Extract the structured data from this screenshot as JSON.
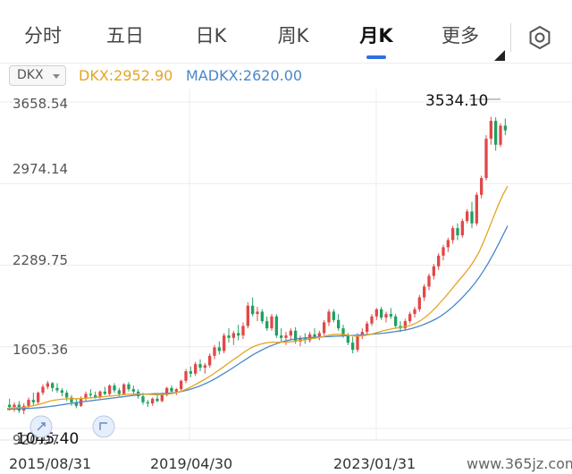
{
  "tabs": [
    {
      "label": "分时",
      "active": false
    },
    {
      "label": "五日",
      "active": false
    },
    {
      "label": "日K",
      "active": false
    },
    {
      "label": "周K",
      "active": false
    },
    {
      "label": "月K",
      "active": true
    },
    {
      "label": "更多",
      "active": false
    }
  ],
  "settings_icon": "gear-icon",
  "legend": {
    "indicator": "DKX",
    "dkx_text": "DKX:2952.90",
    "madkx_text": "MADKX:2620.00",
    "dkx_color": "#e3a520",
    "madkx_color": "#4a86c8"
  },
  "colors": {
    "up": "#e04848",
    "down": "#20a060",
    "accent": "#2f6fe4"
  },
  "watermark": "www.365jz.com",
  "chart_data": {
    "type": "candlestick",
    "y_ticks": [
      "3658.54",
      "2974.14",
      "2289.75",
      "1605.36",
      "920.97"
    ],
    "ylim": [
      920.97,
      3658.54
    ],
    "x_labels": [
      "2015/08/31",
      "2019/04/30",
      "2023/01/31"
    ],
    "annotations": {
      "max_label": "3534.10",
      "min_label": "1045.40"
    },
    "candles_ohlc": [
      [
        1120,
        1170,
        1070,
        1100
      ],
      [
        1100,
        1140,
        1060,
        1120
      ],
      [
        1120,
        1150,
        1050,
        1070
      ],
      [
        1070,
        1130,
        1040,
        1110
      ],
      [
        1110,
        1180,
        1090,
        1160
      ],
      [
        1160,
        1220,
        1110,
        1140
      ],
      [
        1140,
        1230,
        1120,
        1220
      ],
      [
        1220,
        1290,
        1200,
        1270
      ],
      [
        1270,
        1320,
        1250,
        1300
      ],
      [
        1300,
        1310,
        1230,
        1260
      ],
      [
        1260,
        1300,
        1220,
        1240
      ],
      [
        1240,
        1260,
        1190,
        1220
      ],
      [
        1220,
        1240,
        1150,
        1180
      ],
      [
        1180,
        1200,
        1110,
        1140
      ],
      [
        1140,
        1170,
        1090,
        1110
      ],
      [
        1110,
        1190,
        1100,
        1170
      ],
      [
        1170,
        1230,
        1150,
        1210
      ],
      [
        1210,
        1250,
        1180,
        1200
      ],
      [
        1200,
        1230,
        1170,
        1180
      ],
      [
        1180,
        1240,
        1170,
        1230
      ],
      [
        1230,
        1270,
        1200,
        1210
      ],
      [
        1210,
        1290,
        1190,
        1280
      ],
      [
        1280,
        1300,
        1220,
        1240
      ],
      [
        1240,
        1260,
        1190,
        1210
      ],
      [
        1210,
        1300,
        1200,
        1290
      ],
      [
        1290,
        1310,
        1230,
        1250
      ],
      [
        1250,
        1280,
        1210,
        1230
      ],
      [
        1230,
        1250,
        1170,
        1190
      ],
      [
        1190,
        1220,
        1120,
        1140
      ],
      [
        1140,
        1160,
        1100,
        1130
      ],
      [
        1130,
        1180,
        1110,
        1170
      ],
      [
        1170,
        1200,
        1140,
        1150
      ],
      [
        1150,
        1220,
        1140,
        1200
      ],
      [
        1200,
        1270,
        1190,
        1260
      ],
      [
        1260,
        1280,
        1210,
        1230
      ],
      [
        1230,
        1260,
        1200,
        1250
      ],
      [
        1250,
        1330,
        1240,
        1320
      ],
      [
        1320,
        1420,
        1300,
        1400
      ],
      [
        1400,
        1440,
        1350,
        1380
      ],
      [
        1380,
        1480,
        1360,
        1460
      ],
      [
        1460,
        1500,
        1400,
        1430
      ],
      [
        1430,
        1470,
        1380,
        1450
      ],
      [
        1450,
        1550,
        1430,
        1530
      ],
      [
        1530,
        1620,
        1500,
        1600
      ],
      [
        1600,
        1650,
        1540,
        1570
      ],
      [
        1570,
        1720,
        1550,
        1700
      ],
      [
        1700,
        1760,
        1640,
        1680
      ],
      [
        1680,
        1740,
        1620,
        1720
      ],
      [
        1720,
        1790,
        1660,
        1700
      ],
      [
        1700,
        1810,
        1670,
        1780
      ],
      [
        1780,
        1980,
        1760,
        1950
      ],
      [
        1950,
        2020,
        1860,
        1880
      ],
      [
        1880,
        1940,
        1820,
        1900
      ],
      [
        1900,
        1920,
        1800,
        1820
      ],
      [
        1820,
        1860,
        1740,
        1760
      ],
      [
        1760,
        1880,
        1740,
        1860
      ],
      [
        1860,
        1880,
        1680,
        1700
      ],
      [
        1700,
        1760,
        1640,
        1680
      ],
      [
        1680,
        1730,
        1620,
        1700
      ],
      [
        1700,
        1760,
        1660,
        1740
      ],
      [
        1740,
        1770,
        1630,
        1650
      ],
      [
        1650,
        1700,
        1610,
        1680
      ],
      [
        1680,
        1720,
        1630,
        1660
      ],
      [
        1660,
        1730,
        1640,
        1710
      ],
      [
        1710,
        1760,
        1670,
        1690
      ],
      [
        1690,
        1740,
        1660,
        1720
      ],
      [
        1720,
        1830,
        1700,
        1810
      ],
      [
        1810,
        1920,
        1780,
        1900
      ],
      [
        1900,
        1920,
        1810,
        1830
      ],
      [
        1830,
        1880,
        1740,
        1760
      ],
      [
        1760,
        1790,
        1680,
        1700
      ],
      [
        1700,
        1720,
        1620,
        1640
      ],
      [
        1640,
        1690,
        1550,
        1580
      ],
      [
        1580,
        1720,
        1560,
        1700
      ],
      [
        1700,
        1760,
        1670,
        1730
      ],
      [
        1730,
        1820,
        1710,
        1800
      ],
      [
        1800,
        1880,
        1780,
        1860
      ],
      [
        1860,
        1930,
        1830,
        1920
      ],
      [
        1920,
        1940,
        1830,
        1850
      ],
      [
        1850,
        1900,
        1810,
        1880
      ],
      [
        1880,
        1930,
        1840,
        1860
      ],
      [
        1860,
        1880,
        1760,
        1780
      ],
      [
        1780,
        1820,
        1730,
        1760
      ],
      [
        1760,
        1840,
        1740,
        1820
      ],
      [
        1820,
        1900,
        1800,
        1880
      ],
      [
        1880,
        1940,
        1850,
        1920
      ],
      [
        1920,
        2040,
        1900,
        2020
      ],
      [
        2020,
        2130,
        1990,
        2110
      ],
      [
        2110,
        2220,
        2080,
        2200
      ],
      [
        2200,
        2300,
        2170,
        2280
      ],
      [
        2280,
        2390,
        2250,
        2370
      ],
      [
        2370,
        2460,
        2330,
        2440
      ],
      [
        2440,
        2520,
        2400,
        2500
      ],
      [
        2500,
        2620,
        2470,
        2600
      ],
      [
        2600,
        2640,
        2500,
        2540
      ],
      [
        2540,
        2680,
        2520,
        2660
      ],
      [
        2660,
        2760,
        2640,
        2740
      ],
      [
        2740,
        2820,
        2600,
        2640
      ],
      [
        2640,
        2900,
        2620,
        2880
      ],
      [
        2880,
        3040,
        2850,
        3020
      ],
      [
        3020,
        3380,
        3000,
        3350
      ],
      [
        3350,
        3534,
        3300,
        3500
      ],
      [
        3500,
        3530,
        3250,
        3300
      ],
      [
        3300,
        3480,
        3280,
        3460
      ],
      [
        3460,
        3520,
        3380,
        3420
      ]
    ],
    "dkx_line": [
      1090,
      1092,
      1094,
      1096,
      1100,
      1108,
      1116,
      1126,
      1138,
      1150,
      1158,
      1164,
      1168,
      1170,
      1170,
      1170,
      1172,
      1175,
      1178,
      1182,
      1186,
      1190,
      1194,
      1198,
      1202,
      1206,
      1208,
      1210,
      1210,
      1208,
      1206,
      1204,
      1204,
      1206,
      1210,
      1216,
      1226,
      1240,
      1258,
      1278,
      1300,
      1322,
      1345,
      1370,
      1398,
      1426,
      1455,
      1484,
      1512,
      1540,
      1568,
      1592,
      1612,
      1626,
      1636,
      1642,
      1644,
      1644,
      1644,
      1646,
      1650,
      1656,
      1662,
      1668,
      1674,
      1680,
      1688,
      1698,
      1706,
      1710,
      1710,
      1706,
      1700,
      1696,
      1696,
      1700,
      1708,
      1718,
      1730,
      1740,
      1750,
      1758,
      1764,
      1770,
      1778,
      1790,
      1808,
      1832,
      1862,
      1898,
      1938,
      1982,
      2028,
      2076,
      2124,
      2172,
      2220,
      2270,
      2330,
      2400,
      2490,
      2590,
      2690,
      2790,
      2880,
      2952.9
    ],
    "madkx_line": [
      1080,
      1082,
      1084,
      1086,
      1088,
      1090,
      1093,
      1096,
      1100,
      1105,
      1110,
      1116,
      1122,
      1128,
      1134,
      1140,
      1145,
      1150,
      1155,
      1160,
      1165,
      1170,
      1175,
      1180,
      1185,
      1190,
      1195,
      1200,
      1205,
      1208,
      1210,
      1212,
      1213,
      1214,
      1216,
      1220,
      1226,
      1234,
      1244,
      1256,
      1270,
      1286,
      1304,
      1324,
      1346,
      1370,
      1394,
      1420,
      1446,
      1472,
      1498,
      1524,
      1548,
      1570,
      1590,
      1608,
      1624,
      1638,
      1650,
      1660,
      1668,
      1674,
      1678,
      1681,
      1684,
      1686,
      1688,
      1690,
      1692,
      1694,
      1696,
      1698,
      1700,
      1702,
      1704,
      1706,
      1709,
      1712,
      1716,
      1720,
      1725,
      1730,
      1736,
      1742,
      1750,
      1760,
      1772,
      1786,
      1802,
      1820,
      1840,
      1864,
      1892,
      1924,
      1960,
      1999,
      2040,
      2084,
      2132,
      2186,
      2246,
      2312,
      2384,
      2460,
      2540,
      2620
    ]
  }
}
